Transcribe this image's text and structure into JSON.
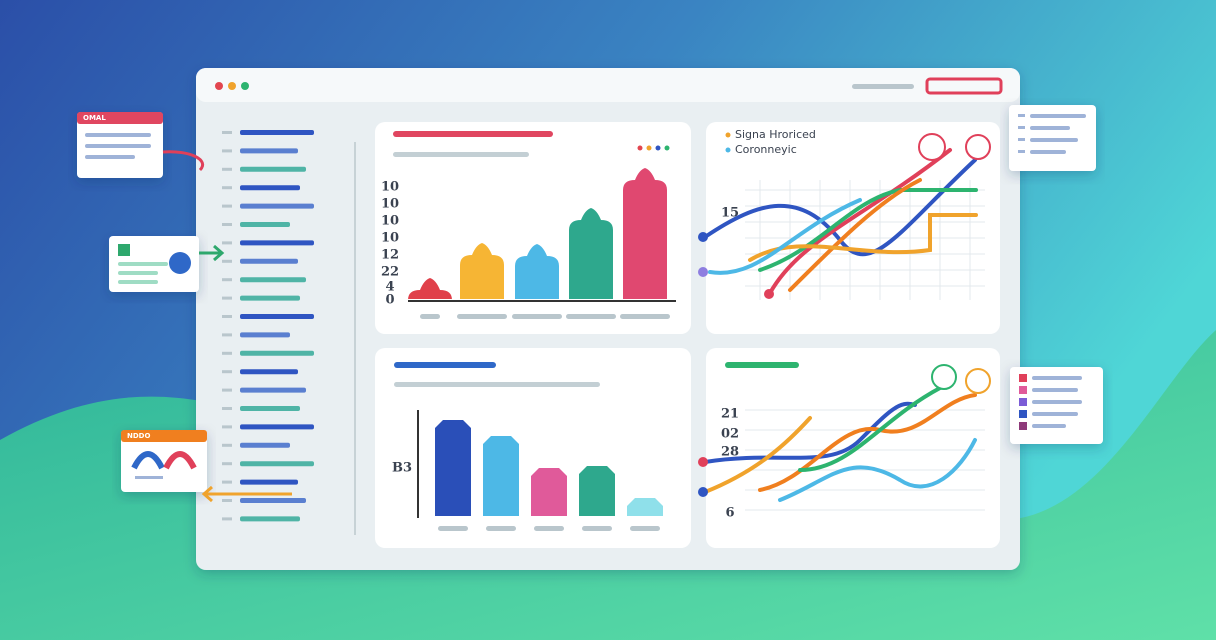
{
  "cards": {
    "mail": {
      "label": "OMAL"
    },
    "profile": {
      "label": "NDDO"
    }
  },
  "panels": [
    {
      "y_labels": [
        "10",
        "10",
        "10",
        "10",
        "12",
        "22",
        "4",
        "0"
      ]
    },
    {
      "legend": [
        "Signa Hroriced",
        "Coronneyic"
      ],
      "y_labels": [
        "15"
      ]
    },
    {
      "y_labels": [
        "B3"
      ]
    },
    {
      "y_labels": [
        "21",
        "02",
        "28",
        "6"
      ]
    }
  ]
}
